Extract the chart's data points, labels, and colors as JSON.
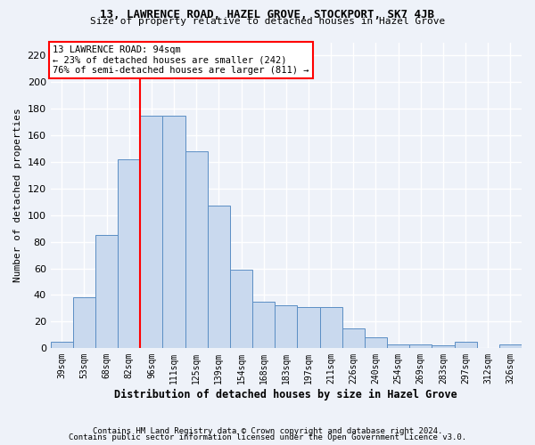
{
  "title1": "13, LAWRENCE ROAD, HAZEL GROVE, STOCKPORT, SK7 4JB",
  "title2": "Size of property relative to detached houses in Hazel Grove",
  "xlabel": "Distribution of detached houses by size in Hazel Grove",
  "ylabel": "Number of detached properties",
  "bar_color": "#c9d9ee",
  "bar_edge_color": "#5b8ec4",
  "vline_color": "red",
  "categories": [
    "39sqm",
    "53sqm",
    "68sqm",
    "82sqm",
    "96sqm",
    "111sqm",
    "125sqm",
    "139sqm",
    "154sqm",
    "168sqm",
    "183sqm",
    "197sqm",
    "211sqm",
    "226sqm",
    "240sqm",
    "254sqm",
    "269sqm",
    "283sqm",
    "297sqm",
    "312sqm",
    "326sqm"
  ],
  "values": [
    5,
    38,
    85,
    142,
    175,
    175,
    148,
    107,
    59,
    35,
    32,
    31,
    31,
    15,
    8,
    3,
    3,
    2,
    5,
    0,
    3
  ],
  "annotation_text": "13 LAWRENCE ROAD: 94sqm\n← 23% of detached houses are smaller (242)\n76% of semi-detached houses are larger (811) →",
  "ylim": [
    0,
    230
  ],
  "yticks": [
    0,
    20,
    40,
    60,
    80,
    100,
    120,
    140,
    160,
    180,
    200,
    220
  ],
  "footer1": "Contains HM Land Registry data © Crown copyright and database right 2024.",
  "footer2": "Contains public sector information licensed under the Open Government Licence v3.0.",
  "bg_color": "#eef2f9",
  "grid_color": "#ffffff"
}
